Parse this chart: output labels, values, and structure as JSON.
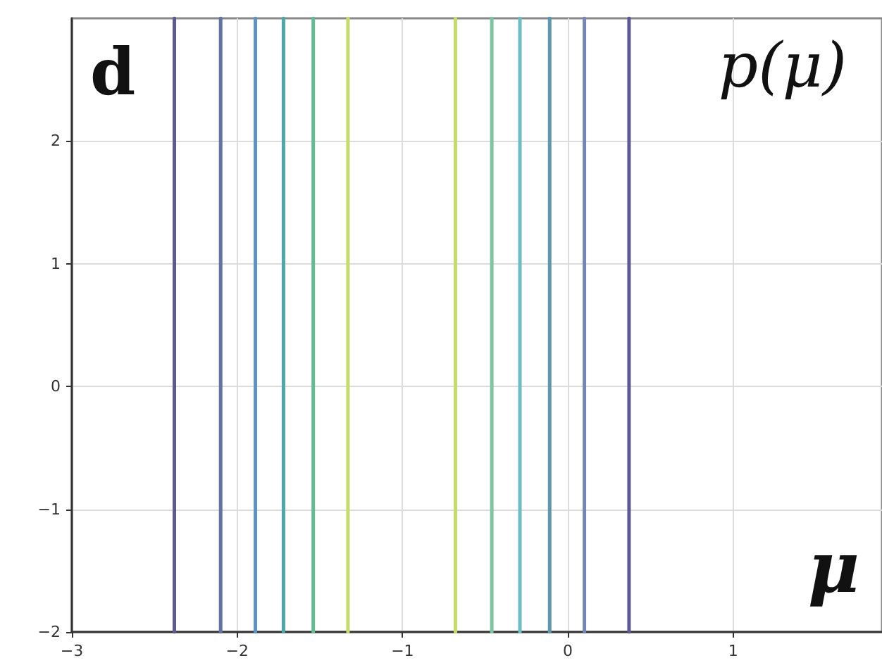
{
  "chart_data": {
    "type": "line",
    "title": "p(μ)",
    "xlabel": "μ",
    "annotations": [
      "d"
    ],
    "xlim": [
      -3,
      1.9
    ],
    "ylim": [
      -2,
      3
    ],
    "xticks": [
      {
        "value": -3,
        "label": "−3"
      },
      {
        "value": -2,
        "label": "−2"
      },
      {
        "value": -1,
        "label": "−1"
      },
      0,
      1
    ],
    "yticks": [
      {
        "value": -2,
        "label": "−2"
      },
      {
        "value": -1,
        "label": "−1"
      },
      0,
      1,
      2
    ],
    "grid": true,
    "series": [
      {
        "color": "#5d5a92",
        "x": [
          -2.38,
          -2.38
        ],
        "values": [
          -2,
          3
        ]
      },
      {
        "color": "#5f74a2",
        "x": [
          -2.1,
          -2.1
        ],
        "values": [
          -2,
          3
        ]
      },
      {
        "color": "#5d93c2",
        "x": [
          -1.89,
          -1.89
        ],
        "values": [
          -2,
          3
        ]
      },
      {
        "color": "#4fa6a6",
        "x": [
          -1.72,
          -1.72
        ],
        "values": [
          -2,
          3
        ]
      },
      {
        "color": "#62bb92",
        "x": [
          -1.54,
          -1.54
        ],
        "values": [
          -2,
          3
        ]
      },
      {
        "color": "#c5dc6a",
        "x": [
          -1.33,
          -1.33
        ],
        "values": [
          -2,
          3
        ]
      },
      {
        "color": "#c5dc6a",
        "x": [
          -0.68,
          -0.68
        ],
        "values": [
          -2,
          3
        ]
      },
      {
        "color": "#7cc4a4",
        "x": [
          -0.46,
          -0.46
        ],
        "values": [
          -2,
          3
        ]
      },
      {
        "color": "#6fbcc4",
        "x": [
          -0.29,
          -0.29
        ],
        "values": [
          -2,
          3
        ]
      },
      {
        "color": "#5e98ae",
        "x": [
          -0.11,
          -0.11
        ],
        "values": [
          -2,
          3
        ]
      },
      {
        "color": "#7585b8",
        "x": [
          0.1,
          0.1
        ],
        "values": [
          -2,
          3
        ]
      },
      {
        "color": "#5d5a92",
        "x": [
          0.37,
          0.37
        ],
        "values": [
          -2,
          3
        ]
      }
    ]
  }
}
